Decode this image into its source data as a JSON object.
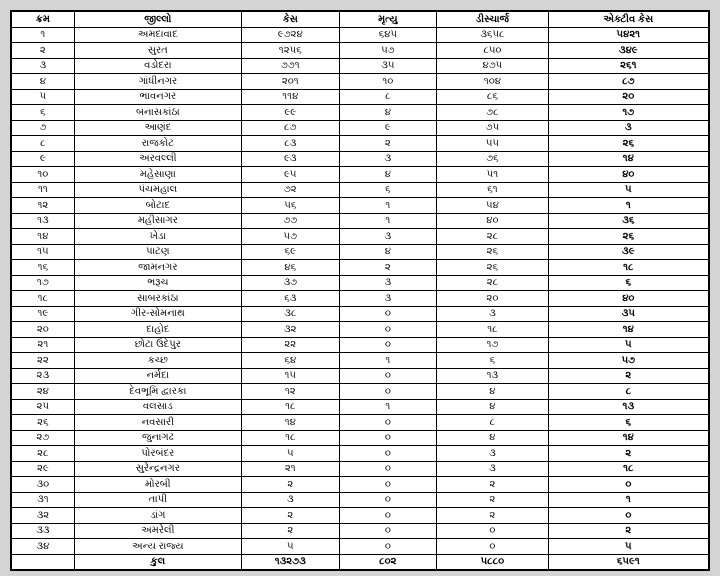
{
  "table": {
    "headers": [
      "ક્રમ",
      "જીલ્લો",
      "કેસ",
      "મૃત્યુ",
      "ડીસ્ચાર્જ",
      "એક્ટીવ કેસ"
    ],
    "rows": [
      [
        "૧",
        "અમદાવાદ",
        "૯૭૨૪",
        "૬૪૫",
        "૩૬૫૮",
        "૫૪૨૧"
      ],
      [
        "૨",
        "સુરત",
        "૧૨૫૬",
        "૫૭",
        "૮૫૦",
        "૩૪૯"
      ],
      [
        "૩",
        "વડોદરા",
        "૭૭૧",
        "૩૫",
        "૪૭૫",
        "૨૬૧"
      ],
      [
        "૪",
        "ગાંધીનગર",
        "૨૦૧",
        "૧૦",
        "૧૦૪",
        "૮૭"
      ],
      [
        "૫",
        "ભાવનગર",
        "૧૧૪",
        "૮",
        "૮૬",
        "૨૦"
      ],
      [
        "૬",
        "બનાસકાંઠા",
        "૯૯",
        "૪",
        "૭૮",
        "૧૭"
      ],
      [
        "૭",
        "આણંદ",
        "૮૭",
        "૯",
        "૭૫",
        "૩"
      ],
      [
        "૮",
        "રાજકોટ",
        "૮૩",
        "૨",
        "૫૫",
        "૨૬"
      ],
      [
        "૯",
        "અરવલ્લી",
        "૯૩",
        "૩",
        "૭૬",
        "૧૪"
      ],
      [
        "૧૦",
        "મહેસાણા",
        "૯૫",
        "૪",
        "૫૧",
        "૪૦"
      ],
      [
        "૧૧",
        "પંચમહાલ",
        "૭૨",
        "૬",
        "૬૧",
        "૫"
      ],
      [
        "૧૨",
        "બોટાદ",
        "૫૬",
        "૧",
        "૫૪",
        "૧"
      ],
      [
        "૧૩",
        "મહીસાગર",
        "૭૭",
        "૧",
        "૪૦",
        "૩૬"
      ],
      [
        "૧૪",
        "ખેડા",
        "૫૭",
        "૩",
        "૨૮",
        "૨૬"
      ],
      [
        "૧૫",
        "પાટણ",
        "૬૯",
        "૪",
        "૨૬",
        "૩૯"
      ],
      [
        "૧૬",
        "જામનગર",
        "૪૬",
        "૨",
        "૨૬",
        "૧૮"
      ],
      [
        "૧૭",
        "ભરૂચ",
        "૩૭",
        "૩",
        "૨૮",
        "૬"
      ],
      [
        "૧૮",
        "સાબરકાંઠા",
        "૬૩",
        "૩",
        "૨૦",
        "૪૦"
      ],
      [
        "૧૯",
        "ગીર-સોમનાથ",
        "૩૮",
        "૦",
        "૩",
        "૩૫"
      ],
      [
        "૨૦",
        "દાહોદ",
        "૩૨",
        "૦",
        "૧૮",
        "૧૪"
      ],
      [
        "૨૧",
        "છોટા ઉદેપુર",
        "૨૨",
        "૦",
        "૧૭",
        "૫"
      ],
      [
        "૨૨",
        "કચ્છ",
        "૬૪",
        "૧",
        "૬",
        "૫૭"
      ],
      [
        "૨૩",
        "નર્મદા",
        "૧૫",
        "૦",
        "૧૩",
        "૨"
      ],
      [
        "૨૪",
        "દેવભૂમિ દ્વારકા",
        "૧૨",
        "૦",
        "૪",
        "૮"
      ],
      [
        "૨૫",
        "વલસાડ",
        "૧૮",
        "૧",
        "૪",
        "૧૩"
      ],
      [
        "૨૬",
        "નવસારી",
        "૧૪",
        "૦",
        "૮",
        "૬"
      ],
      [
        "૨૭",
        "જુનાગઢ",
        "૧૮",
        "૦",
        "૪",
        "૧૪"
      ],
      [
        "૨૮",
        "પોરબંદર",
        "૫",
        "૦",
        "૩",
        "૨"
      ],
      [
        "૨૯",
        "સુરેન્દ્રનગર",
        "૨૧",
        "૦",
        "૩",
        "૧૮"
      ],
      [
        "૩૦",
        "મોરબી",
        "૨",
        "૦",
        "૨",
        "૦"
      ],
      [
        "૩૧",
        "તાપી",
        "૩",
        "૦",
        "૨",
        "૧"
      ],
      [
        "૩૨",
        "ડાંગ",
        "૨",
        "૦",
        "૨",
        "૦"
      ],
      [
        "૩૩",
        "અમરેલી",
        "૨",
        "૦",
        "૦",
        "૨"
      ],
      [
        "૩૪",
        "અન્ય રાજ્ય",
        "૫",
        "૦",
        "૦",
        "૫"
      ]
    ],
    "total": [
      "",
      "કુલ",
      "૧૩૨૭૩",
      "૮૦૨",
      "૫૮૮૦",
      "૬૫૯૧"
    ]
  },
  "style": {
    "bg": "#d4d4d4",
    "border": "#000000",
    "cell_bg": "#ffffff"
  }
}
